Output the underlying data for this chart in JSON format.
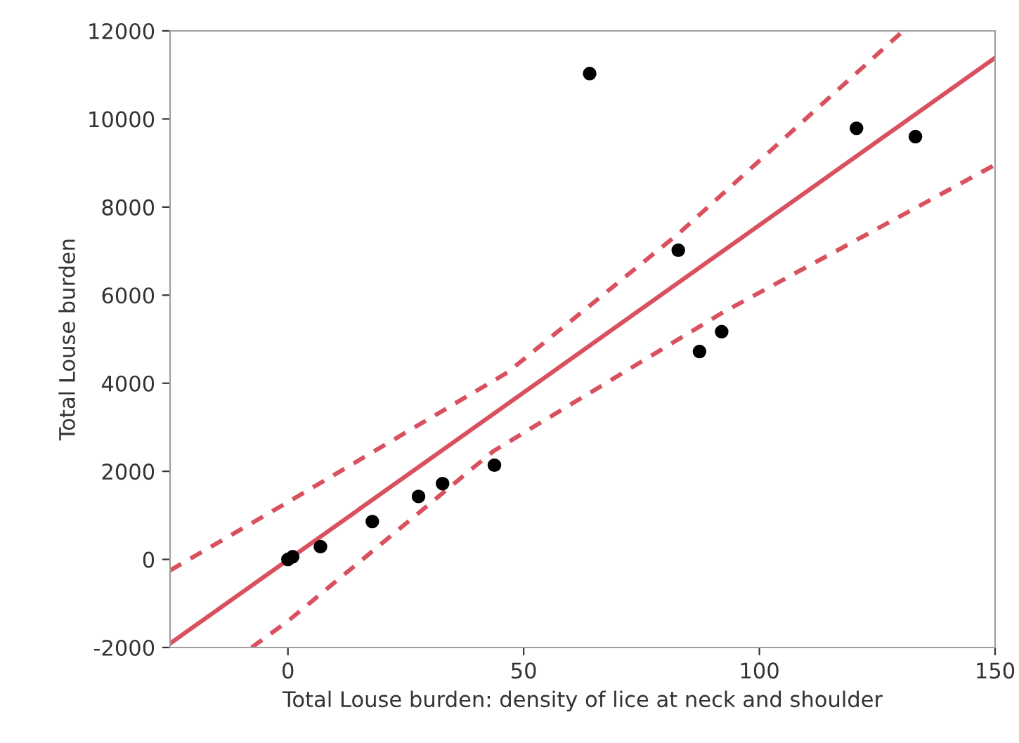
{
  "chart_data": {
    "type": "scatter",
    "xlabel": "Total Louse burden: density of lice at neck and shoulder",
    "ylabel": "Total Louse burden",
    "series": [
      {
        "color": "#000000",
        "marker": "circle",
        "x": [
          0,
          1,
          6.9,
          17.9,
          27.7,
          32.8,
          43.8,
          64,
          82.8,
          87.3,
          92,
          120.6,
          133.1
        ],
        "values": [
          0,
          60,
          290,
          860,
          1430,
          1720,
          2140,
          11030,
          7020,
          4720,
          5170,
          9790,
          9600
        ]
      },
      {
        "type": "line",
        "color": "#d9515e",
        "line_style": "solid",
        "x": [
          -25,
          150
        ],
        "values": [
          -1910,
          11390
        ]
      },
      {
        "type": "line",
        "color": "#d9515e",
        "line_style": "dashed",
        "x": [
          -25,
          0,
          46.5,
          83,
          130.5
        ],
        "values": [
          -250,
          1300,
          4240,
          7410,
          12000
        ]
      },
      {
        "type": "line",
        "color": "#d9515e",
        "line_style": "dashed",
        "x": [
          -7.7,
          0,
          43.6,
          92.3,
          150
        ],
        "values": [
          -2000,
          -1400,
          2460,
          5610,
          8960
        ]
      }
    ],
    "xlim": [
      -25,
      150
    ],
    "xticks": [
      0,
      50,
      100,
      150
    ],
    "ylim": [
      -2000,
      12000
    ],
    "yticks": [
      -2000,
      0,
      2000,
      4000,
      6000,
      8000,
      10000,
      12000
    ],
    "grid": false,
    "legend": false
  }
}
